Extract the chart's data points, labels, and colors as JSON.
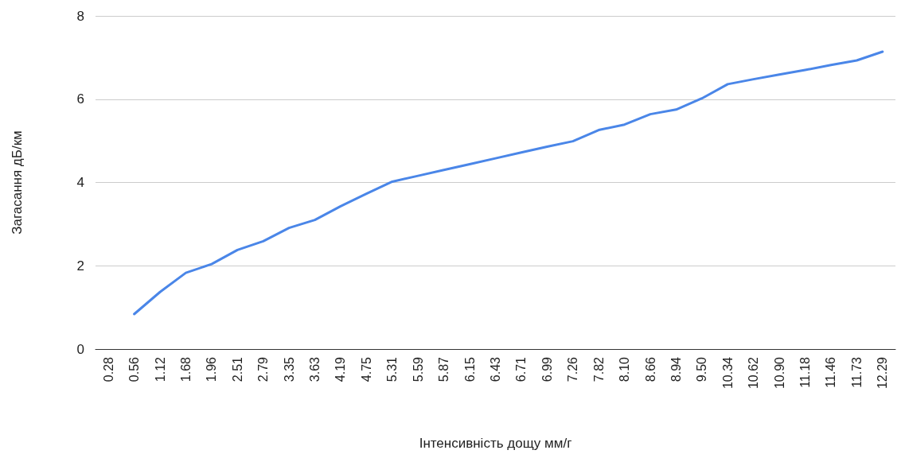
{
  "chart_data": {
    "type": "line",
    "xlabel": "Інтенсивність дощу мм/г",
    "ylabel": "Загасання дБ/км",
    "categories": [
      "0.28",
      "0.56",
      "1.12",
      "1.68",
      "1.96",
      "2.51",
      "2.79",
      "3.35",
      "3.63",
      "4.19",
      "4.75",
      "5.31",
      "5.59",
      "5.87",
      "6.15",
      "6.43",
      "6.71",
      "6.99",
      "7.26",
      "7.82",
      "8.10",
      "8.66",
      "8.94",
      "9.50",
      "10.34",
      "10.62",
      "10.90",
      "11.18",
      "11.46",
      "11.73",
      "12.29"
    ],
    "series": [
      {
        "color": "#4a86e8",
        "values": [
          null,
          0.84,
          1.37,
          1.83,
          2.04,
          2.38,
          2.59,
          2.91,
          3.1,
          3.43,
          3.73,
          4.02,
          4.16,
          4.3,
          4.44,
          4.58,
          4.72,
          4.86,
          4.99,
          5.26,
          5.39,
          5.64,
          5.75,
          6.02,
          6.36,
          6.48,
          6.59,
          6.7,
          6.82,
          6.93,
          7.14
        ]
      }
    ],
    "ylim": [
      0,
      8
    ],
    "yticks": [
      0,
      2,
      4,
      6,
      8
    ],
    "grid": "y",
    "marker": "none",
    "line_style": "solid"
  }
}
